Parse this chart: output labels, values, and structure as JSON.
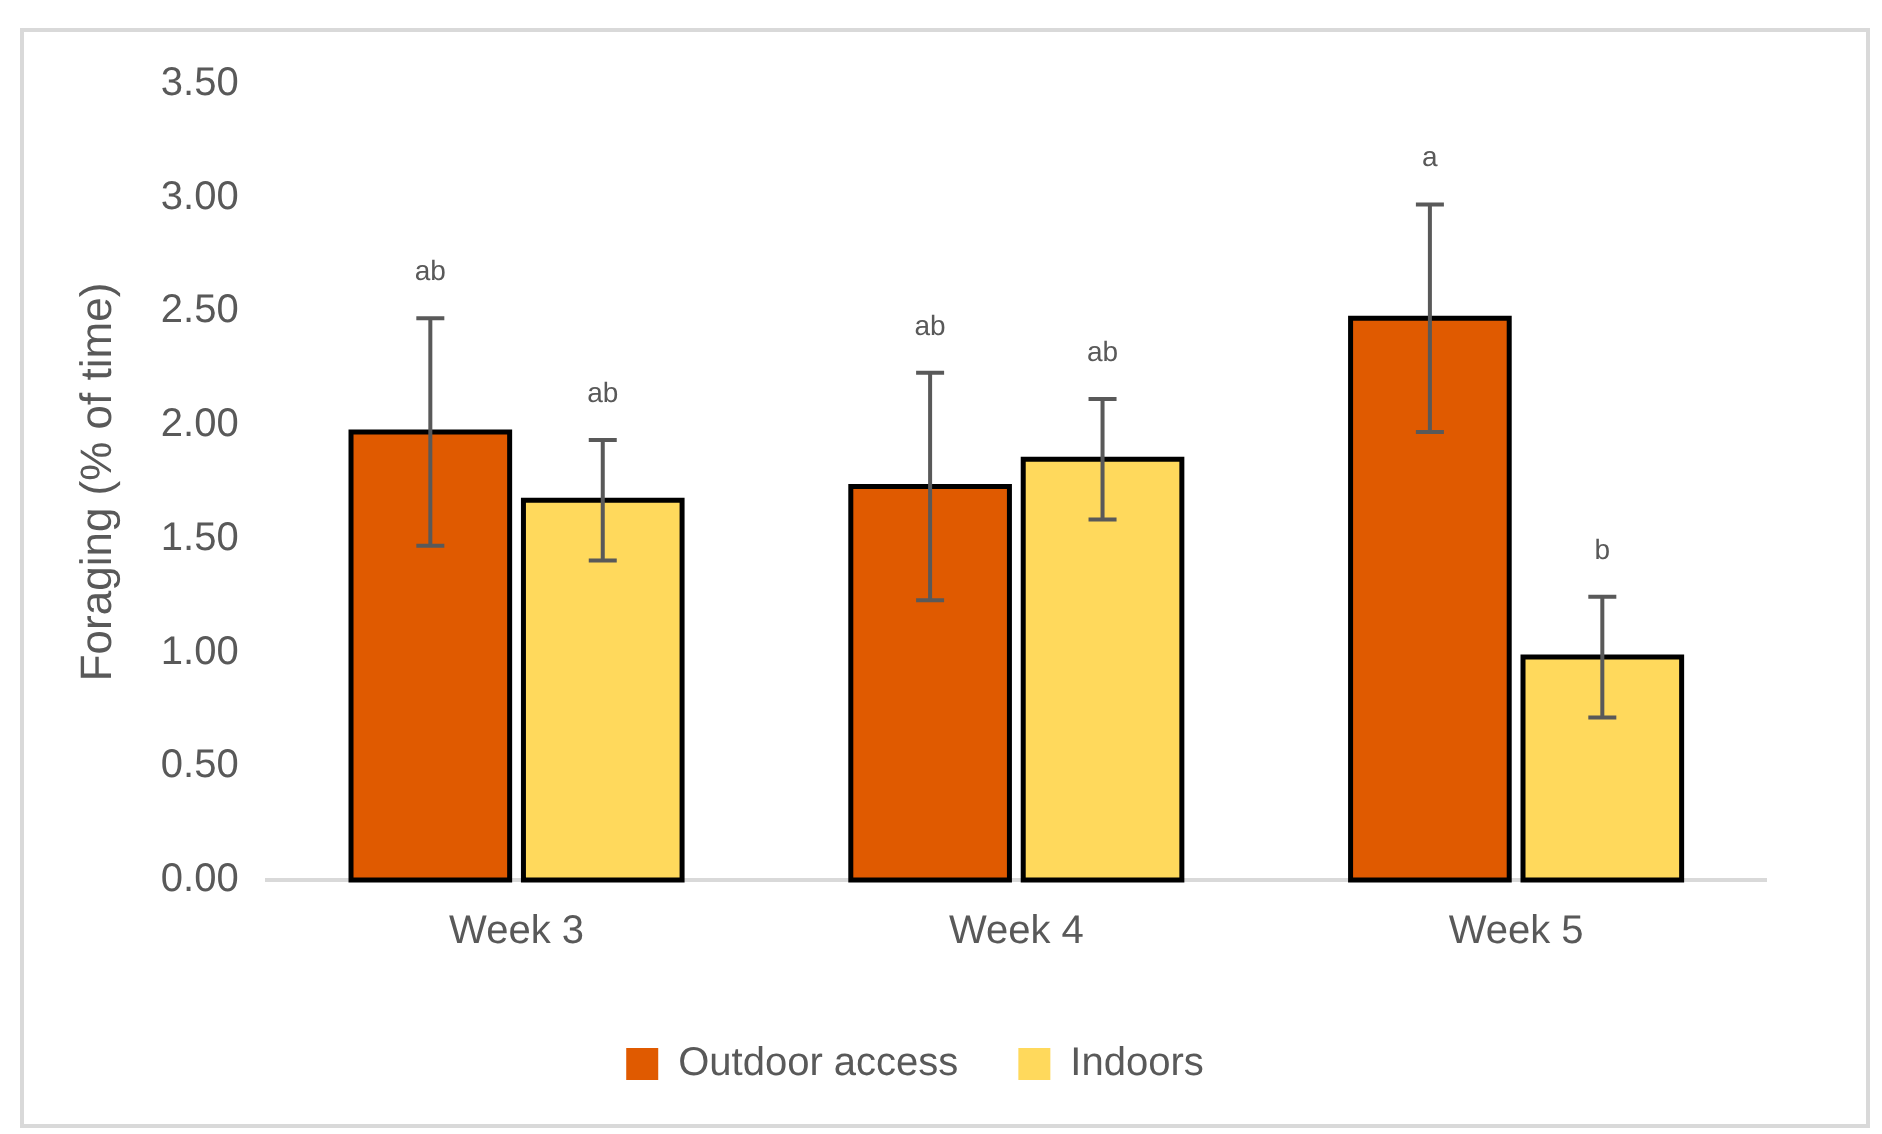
{
  "chart_data": {
    "type": "bar",
    "ylabel": "Foraging (% of time)",
    "categories": [
      "Week 3",
      "Week 4",
      "Week 5"
    ],
    "series": [
      {
        "name": "Outdoor access",
        "color": "#e05a00",
        "values": [
          1.97,
          1.73,
          2.47
        ],
        "errors": [
          0.5,
          0.5,
          0.5
        ]
      },
      {
        "name": "Indoors",
        "color": "#ffd95c",
        "values": [
          1.67,
          1.85,
          0.98
        ],
        "errors": [
          0.265,
          0.265,
          0.265
        ]
      }
    ],
    "annotations": [
      "ab",
      "ab",
      "a",
      "ab",
      "ab",
      "b"
    ],
    "ylim": [
      0,
      3.5
    ],
    "yticks": [
      {
        "value": 0,
        "label": "0.00"
      },
      {
        "value": 0.5,
        "label": "0.50"
      },
      {
        "value": 1,
        "label": "1.00"
      },
      {
        "value": 1.5,
        "label": "1.50"
      },
      {
        "value": 2,
        "label": "2.00"
      },
      {
        "value": 2.5,
        "label": "2.50"
      },
      {
        "value": 3,
        "label": "3.00"
      },
      {
        "value": 3.5,
        "label": "3.50"
      }
    ],
    "grid": false,
    "legend": "bottom"
  }
}
